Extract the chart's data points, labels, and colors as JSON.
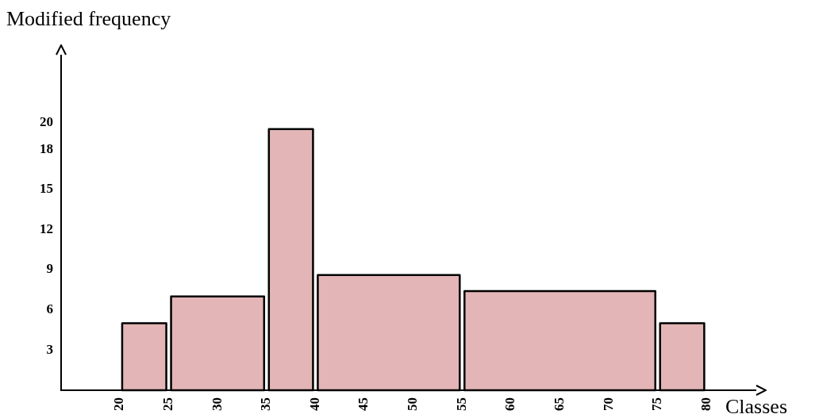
{
  "chart_data": {
    "type": "histogram",
    "xlabel": "Classes",
    "ylabel": "Modified frequency",
    "bins": [
      20,
      25,
      35,
      40,
      55,
      75,
      80
    ],
    "values": [
      5,
      7,
      19.5,
      8.6,
      7.4,
      5
    ],
    "color": "#e3b5b6",
    "xlim": [
      14,
      85
    ],
    "xticks": [
      20,
      25,
      30,
      35,
      40,
      45,
      50,
      55,
      60,
      65,
      70,
      75,
      80
    ],
    "ylim": [
      0,
      25
    ],
    "yticks": [
      3,
      6,
      9,
      12,
      15,
      18,
      20
    ],
    "grid": false,
    "legend": false
  }
}
